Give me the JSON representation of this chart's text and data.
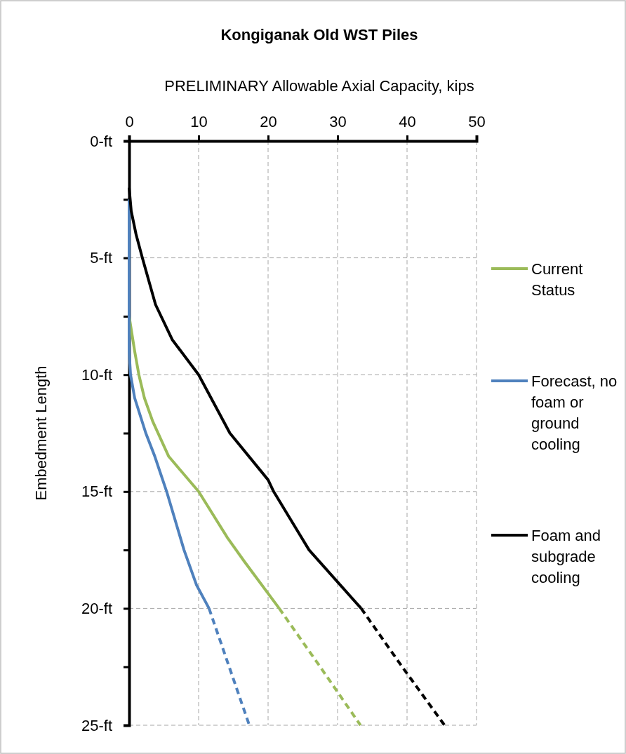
{
  "chart_data": {
    "type": "line",
    "title": "Kongiganak Old WST Piles",
    "xlabel": "PRELIMINARY  Allowable  Axial Capacity, kips",
    "ylabel": "Embedment  Length",
    "xlim": [
      0,
      50
    ],
    "xticks": [
      0,
      10,
      20,
      30,
      40,
      50
    ],
    "ylim": [
      25,
      0
    ],
    "yticks": [
      {
        "value": 0,
        "label": "0-ft"
      },
      {
        "value": 2.5,
        "label": null
      },
      {
        "value": 5,
        "label": "5-ft"
      },
      {
        "value": 7.5,
        "label": null
      },
      {
        "value": 10,
        "label": "10-ft"
      },
      {
        "value": 12.5,
        "label": null
      },
      {
        "value": 15,
        "label": "15-ft"
      },
      {
        "value": 17.5,
        "label": null
      },
      {
        "value": 20,
        "label": "20-ft"
      },
      {
        "value": 22.5,
        "label": null
      },
      {
        "value": 25,
        "label": "25-ft"
      }
    ],
    "grid": true,
    "legend": "right",
    "marker": "none",
    "series": [
      {
        "name": "Current Status",
        "color": "#9bbb59",
        "line_style": "solid",
        "x": [
          0,
          0.8,
          1.4,
          2.2,
          3.4,
          5.7,
          10,
          14.2,
          16.6,
          21.6
        ],
        "values": [
          7.5,
          9,
          10,
          11,
          12,
          13.5,
          15,
          17,
          18,
          20
        ]
      },
      {
        "name": "Forecast, no foam or ground cooling",
        "color": "#4f81bd",
        "line_style": "solid",
        "x": [
          0,
          0,
          0.2,
          0.8,
          2.4,
          3.7,
          5.4,
          7.9,
          9.7,
          11.5
        ],
        "values": [
          2.5,
          9,
          10,
          11,
          12.5,
          13.5,
          15,
          17.5,
          19,
          20
        ]
      },
      {
        "name": "Foam and subgrade cooling",
        "color": "#000000",
        "line_style": "solid",
        "x": [
          0,
          0.3,
          1,
          1.9,
          3.8,
          6.2,
          10,
          14.5,
          20,
          20.8,
          25.9,
          33.4
        ],
        "values": [
          2,
          3,
          4,
          5,
          7,
          8.5,
          10,
          12.5,
          14.5,
          15,
          17.5,
          20
        ]
      },
      {
        "color": "#9bbb59",
        "line_style": "dashed",
        "x": [
          21.6,
          27.5,
          33.3
        ],
        "values": [
          20,
          22.5,
          25
        ]
      },
      {
        "color": "#4f81bd",
        "line_style": "dashed",
        "x": [
          11.5,
          14.4,
          17.3
        ],
        "values": [
          20,
          22.5,
          25
        ]
      },
      {
        "color": "#000000",
        "line_style": "dashed",
        "x": [
          33.4,
          39.3,
          45.4
        ],
        "values": [
          20,
          22.5,
          25
        ]
      }
    ]
  }
}
